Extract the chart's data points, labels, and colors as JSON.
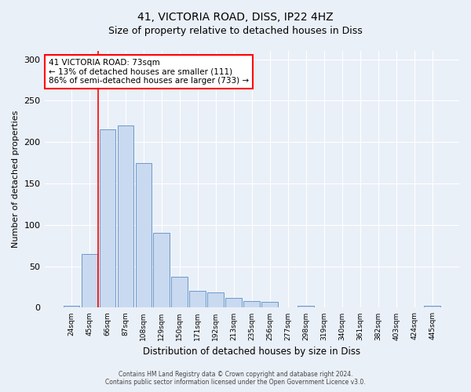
{
  "title1": "41, VICTORIA ROAD, DISS, IP22 4HZ",
  "title2": "Size of property relative to detached houses in Diss",
  "xlabel": "Distribution of detached houses by size in Diss",
  "ylabel": "Number of detached properties",
  "categories": [
    "24sqm",
    "45sqm",
    "66sqm",
    "87sqm",
    "108sqm",
    "129sqm",
    "150sqm",
    "171sqm",
    "192sqm",
    "213sqm",
    "235sqm",
    "256sqm",
    "277sqm",
    "298sqm",
    "319sqm",
    "340sqm",
    "361sqm",
    "382sqm",
    "403sqm",
    "424sqm",
    "445sqm"
  ],
  "values": [
    2,
    65,
    215,
    220,
    175,
    90,
    37,
    20,
    18,
    12,
    8,
    7,
    0,
    2,
    0,
    0,
    0,
    0,
    0,
    0,
    2
  ],
  "bar_color": "#c9d9f0",
  "bar_edge_color": "#5b8ec4",
  "red_line_index": 1.5,
  "annotation_line1": "41 VICTORIA ROAD: 73sqm",
  "annotation_line2": "← 13% of detached houses are smaller (111)",
  "annotation_line3": "86% of semi-detached houses are larger (733) →",
  "ylim_max": 310,
  "yticks": [
    0,
    50,
    100,
    150,
    200,
    250,
    300
  ],
  "footer1": "Contains HM Land Registry data © Crown copyright and database right 2024.",
  "footer2": "Contains public sector information licensed under the Open Government Licence v3.0.",
  "background_color": "#eaf0f8",
  "title_fontsize": 10,
  "subtitle_fontsize": 9
}
